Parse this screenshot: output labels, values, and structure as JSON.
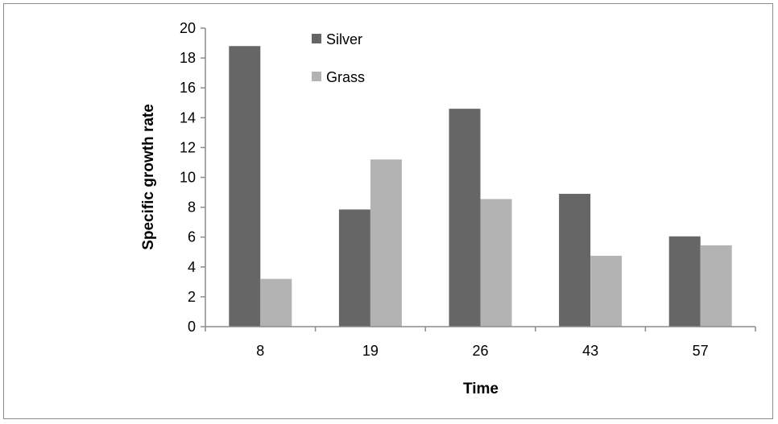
{
  "chart_data": {
    "type": "bar",
    "categories": [
      "8",
      "19",
      "26",
      "43",
      "57"
    ],
    "series": [
      {
        "name": "Silver",
        "color": "#666666",
        "values": [
          18.8,
          7.85,
          14.6,
          8.9,
          6.05
        ]
      },
      {
        "name": "Grass",
        "color": "#b3b3b3",
        "values": [
          3.2,
          11.2,
          8.55,
          4.75,
          5.45
        ]
      }
    ],
    "title": "",
    "xlabel": "Time",
    "ylabel": "Specific growth rate",
    "ylim": [
      0,
      20
    ],
    "yticks": [
      "0",
      "2",
      "4",
      "6",
      "8",
      "10",
      "12",
      "14",
      "16",
      "18",
      "20"
    ],
    "grid": false,
    "legend_position": "top-left"
  }
}
